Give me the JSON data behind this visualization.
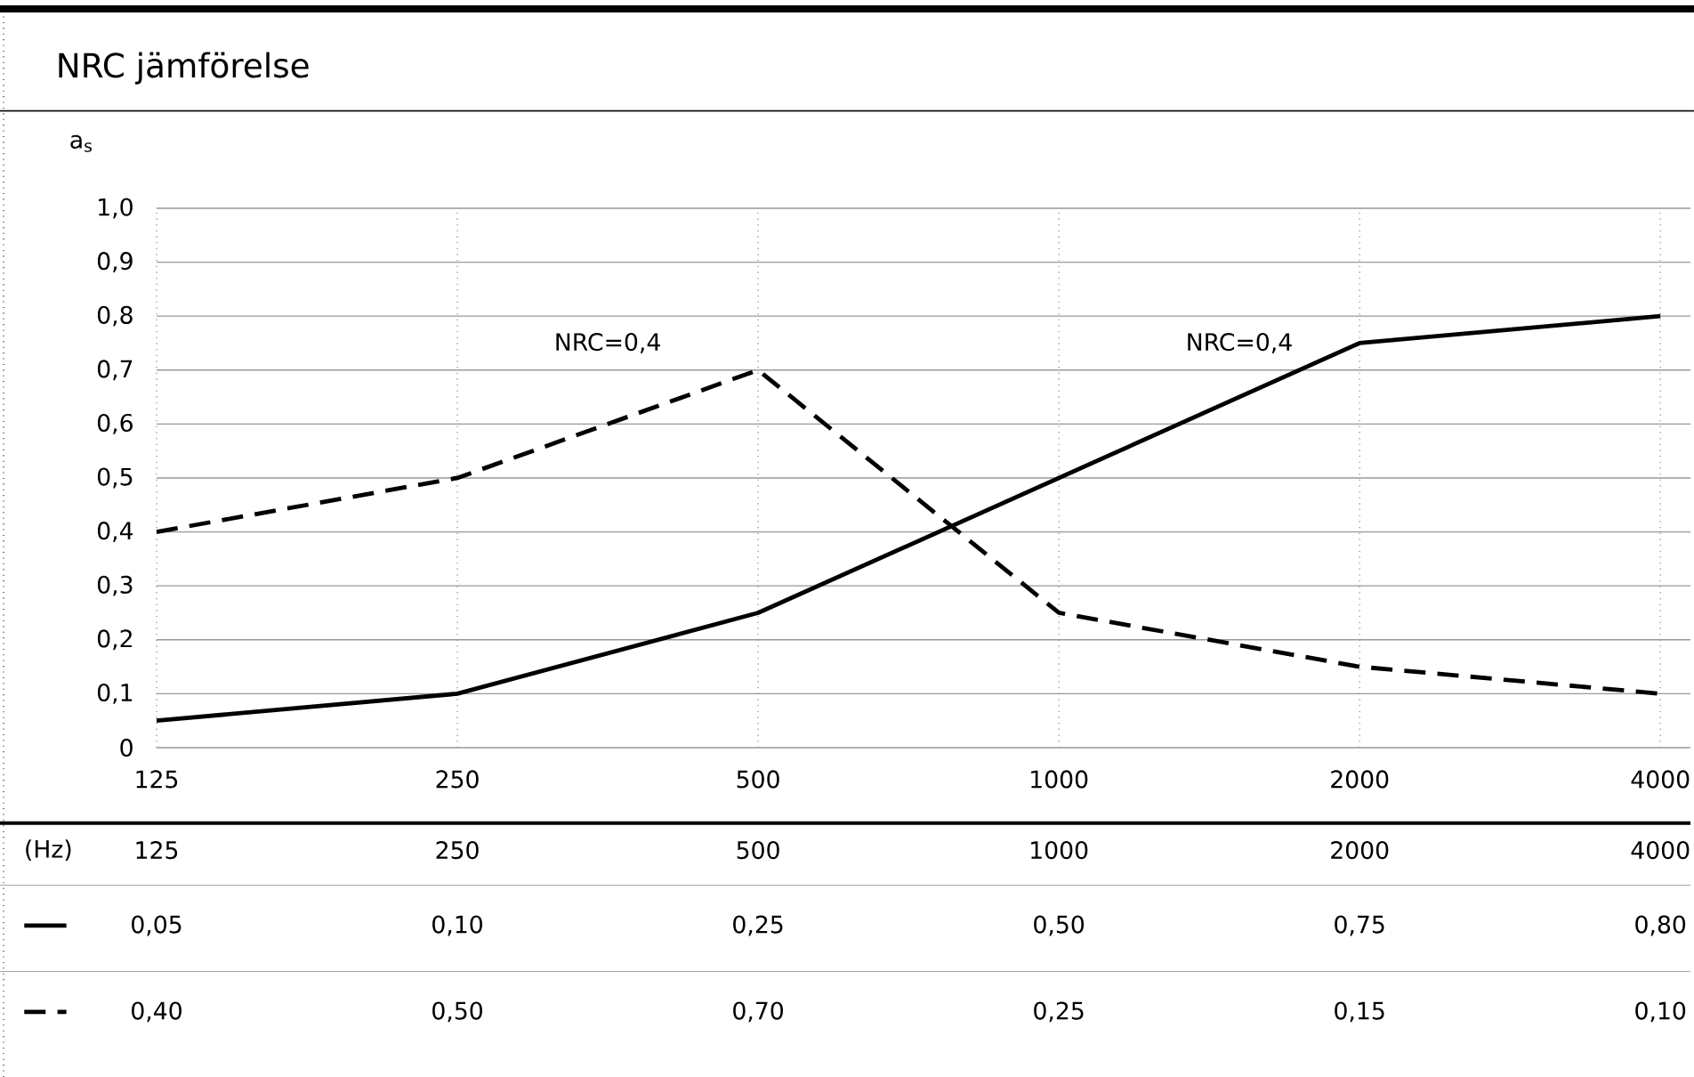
{
  "chart_data": {
    "type": "line",
    "title": "NRC jämförelse",
    "ylabel": "a$_{s}$",
    "xlabel": "(Hz)",
    "categories": [
      "125",
      "250",
      "500",
      "1000",
      "2000",
      "4000"
    ],
    "series": [
      {
        "color": "#000000",
        "line_style": "solid",
        "values": [
          0.05,
          0.1,
          0.25,
          0.5,
          0.75,
          0.8
        ],
        "value_labels": [
          "0,05",
          "0,10",
          "0,25",
          "0,50",
          "0,75",
          "0,80"
        ]
      },
      {
        "color": "#000000",
        "line_style": "dashed",
        "values": [
          0.4,
          0.5,
          0.7,
          0.25,
          0.15,
          0.1
        ],
        "value_labels": [
          "0,40",
          "0,50",
          "0,70",
          "0,25",
          "0,15",
          "0,10"
        ]
      }
    ],
    "ylim": [
      0,
      1.0
    ],
    "yticks": [
      0,
      {
        "value": 0.1,
        "label": "0,1"
      },
      {
        "value": 0.2,
        "label": "0,2"
      },
      {
        "value": 0.3,
        "label": "0,3"
      },
      {
        "value": 0.4,
        "label": "0,4"
      },
      {
        "value": 0.5,
        "label": "0,5"
      },
      {
        "value": 0.6,
        "label": "0,6"
      },
      {
        "value": 0.7,
        "label": "0,7"
      },
      {
        "value": 0.8,
        "label": "0,8"
      },
      {
        "value": 0.9,
        "label": "0,9"
      },
      {
        "value": 1.0,
        "label": "1,0"
      }
    ],
    "grid": true,
    "marker": "none",
    "annotations": [
      "NRC=0,4",
      "NRC=0,4"
    ]
  }
}
